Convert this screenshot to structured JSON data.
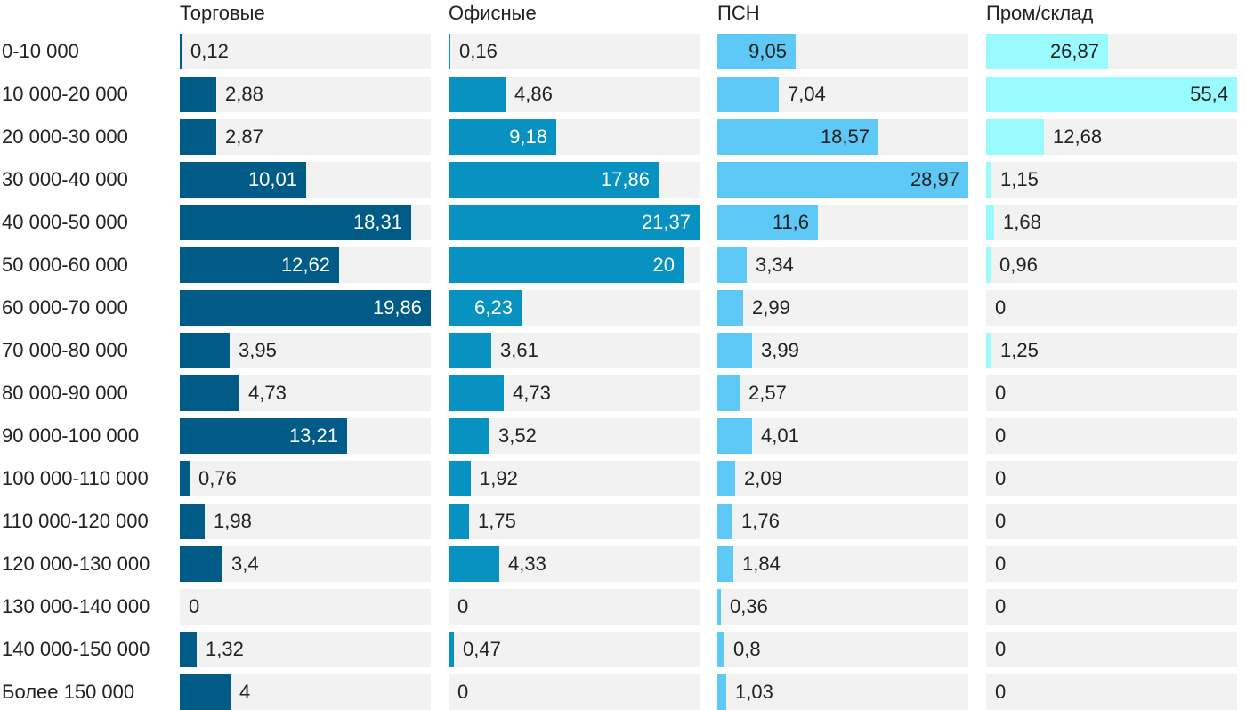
{
  "chart_data": {
    "type": "bar",
    "orientation": "horizontal",
    "categories": [
      "0-10 000",
      "10 000-20 000",
      "20 000-30 000",
      "30 000-40 000",
      "40 000-50 000",
      "50 000-60 000",
      "60 000-70 000",
      "70 000-80 000",
      "80 000-90 000",
      "90 000-100 000",
      "100 000-110 000",
      "110 000-120 000",
      "120 000-130 000",
      "130 000-140 000",
      "140 000-150 000",
      "Более 150 000"
    ],
    "series": [
      {
        "name": "Торговые",
        "color": "#005b87",
        "values": [
          0.12,
          2.88,
          2.87,
          10.01,
          18.31,
          12.62,
          19.86,
          3.95,
          4.73,
          13.21,
          0.76,
          1.98,
          3.4,
          0,
          1.32,
          4
        ],
        "labels": [
          "0,12",
          "2,88",
          "2,87",
          "10,01",
          "18,31",
          "12,62",
          "19,86",
          "3,95",
          "4,73",
          "13,21",
          "0,76",
          "1,98",
          "3,4",
          "0",
          "1,32",
          "4"
        ]
      },
      {
        "name": "Офисные",
        "color": "#0892c1",
        "values": [
          0.16,
          4.86,
          9.18,
          17.86,
          21.37,
          20,
          6.23,
          3.61,
          4.73,
          3.52,
          1.92,
          1.75,
          4.33,
          0,
          0.47,
          0
        ],
        "labels": [
          "0,16",
          "4,86",
          "9,18",
          "17,86",
          "21,37",
          "20",
          "6,23",
          "3,61",
          "4,73",
          "3,52",
          "1,92",
          "1,75",
          "4,33",
          "0",
          "0,47",
          "0"
        ]
      },
      {
        "name": "ПСН",
        "color": "#5ec8f6",
        "values": [
          9.05,
          7.04,
          18.57,
          28.97,
          11.6,
          3.34,
          2.99,
          3.99,
          2.57,
          4.01,
          2.09,
          1.76,
          1.84,
          0.36,
          0.8,
          1.03
        ],
        "labels": [
          "9,05",
          "7,04",
          "18,57",
          "28,97",
          "11,6",
          "3,34",
          "2,99",
          "3,99",
          "2,57",
          "4,01",
          "2,09",
          "1,76",
          "1,84",
          "0,36",
          "0,8",
          "1,03"
        ]
      },
      {
        "name": "Пром/склад",
        "color": "#9afbff",
        "values": [
          26.87,
          55.4,
          12.68,
          1.15,
          1.68,
          0.96,
          0,
          1.25,
          0,
          0,
          0,
          0,
          0,
          0,
          0,
          0
        ],
        "labels": [
          "26,87",
          "55,4",
          "12,68",
          "1,15",
          "1,68",
          "0,96",
          "0",
          "1,25",
          "0",
          "0",
          "0",
          "0",
          "0",
          "0",
          "0",
          "0"
        ]
      }
    ],
    "panel_max": [
      19.86,
      21.37,
      28.97,
      55.4
    ],
    "track_color": "#f2f2f2",
    "grid": false,
    "legend": "none"
  }
}
